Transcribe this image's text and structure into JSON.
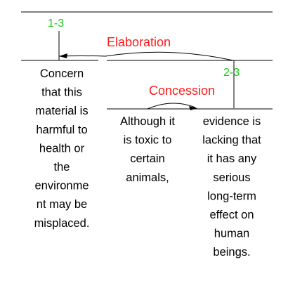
{
  "colors": {
    "span_label": "#17c917",
    "relation_label": "#ff1a1a",
    "line": "#000000"
  },
  "top_span": {
    "label": "1-3"
  },
  "relations": [
    {
      "name": "Elaboration",
      "direction": "right-to-left"
    },
    {
      "name": "Concession",
      "direction": "left-to-right"
    }
  ],
  "inner_span": {
    "label": "2-3"
  },
  "segments": [
    {
      "lines": [
        "Concern",
        "that this",
        "material is",
        "harmful to",
        "health or",
        "the",
        "environme",
        "nt may be",
        "misplaced."
      ]
    },
    {
      "lines": [
        "Although it",
        "is toxic to",
        "certain",
        "animals,"
      ]
    },
    {
      "lines": [
        "evidence is",
        "lacking that",
        "it has any",
        "serious",
        "long-term",
        "effect on",
        "human",
        "beings."
      ]
    }
  ]
}
